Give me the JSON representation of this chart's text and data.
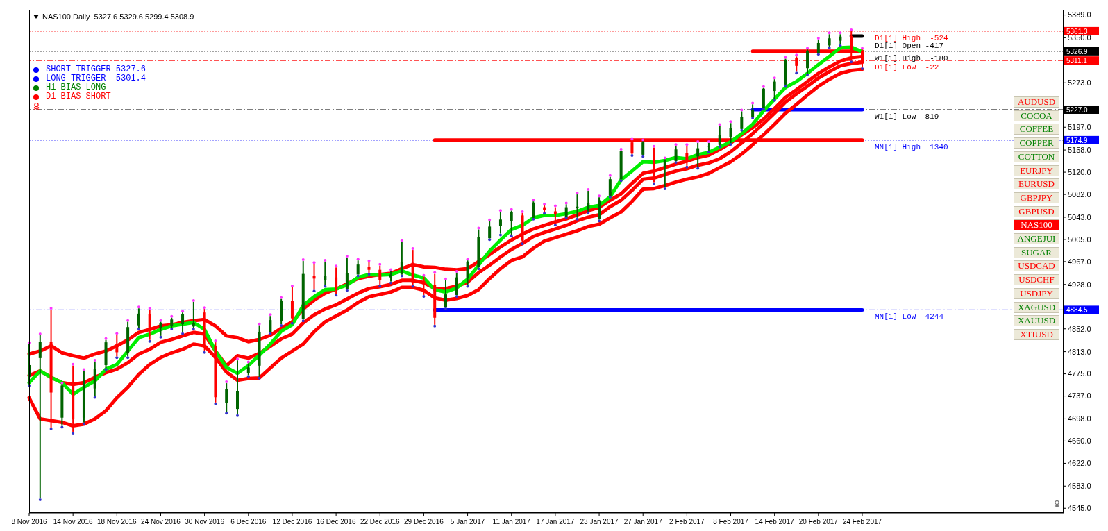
{
  "chart_data": {
    "type": "candlestick",
    "title": "NAS100,Daily  5327.6 5329.6 5299.4 5308.9",
    "categories": [
      "8 Nov 2016",
      null,
      null,
      null,
      "14 Nov 2016",
      null,
      null,
      null,
      "18 Nov 2016",
      null,
      null,
      null,
      "24 Nov 2016",
      null,
      null,
      null,
      "30 Nov 2016",
      null,
      null,
      null,
      "6 Dec 2016",
      null,
      null,
      null,
      "12 Dec 2016",
      null,
      null,
      null,
      "16 Dec 2016",
      null,
      null,
      null,
      "22 Dec 2016",
      null,
      null,
      null,
      "29 Dec 2016",
      null,
      null,
      null,
      "5 Jan 2017",
      null,
      null,
      null,
      "11 Jan 2017",
      null,
      null,
      null,
      "17 Jan 2017",
      null,
      null,
      null,
      "23 Jan 2017",
      null,
      null,
      null,
      "27 Jan 2017",
      null,
      null,
      null,
      "2 Feb 2017",
      null,
      null,
      null,
      "8 Feb 2017",
      null,
      null,
      null,
      "14 Feb 2017",
      null,
      null,
      null,
      "20 Feb 2017",
      null,
      null,
      null,
      "24 Feb 2017"
    ],
    "ohlc": [
      [
        4770,
        4826,
        4757,
        4790
      ],
      [
        4802,
        4841,
        4562,
        4830
      ],
      [
        4830,
        4885,
        4683,
        4743
      ],
      [
        4700,
        4757,
        4686,
        4755
      ],
      [
        4760,
        4789,
        4676,
        4698
      ],
      [
        4700,
        4780,
        4692,
        4765
      ],
      [
        4750,
        4796,
        4737,
        4783
      ],
      [
        4790,
        4833,
        4785,
        4829
      ],
      [
        4826,
        4842,
        4805,
        4812
      ],
      [
        4810,
        4864,
        4805,
        4855
      ],
      [
        4858,
        4887,
        4854,
        4878
      ],
      [
        4877,
        4885,
        4833,
        4852
      ],
      [
        4854,
        4864,
        4840,
        4862
      ],
      [
        4857,
        4871,
        4854,
        4868
      ],
      [
        4860,
        4880,
        4846,
        4877
      ],
      [
        4856,
        4898,
        4854,
        4862
      ],
      [
        4880,
        4886,
        4814,
        4820
      ],
      [
        4822,
        4829,
        4726,
        4735
      ],
      [
        4725,
        4759,
        4710,
        4749
      ],
      [
        4715,
        4798,
        4706,
        4745
      ],
      [
        4776,
        4793,
        4773,
        4786
      ],
      [
        4789,
        4858,
        4770,
        4847
      ],
      [
        4846,
        4874,
        4846,
        4867
      ],
      [
        4866,
        4903,
        4860,
        4900
      ],
      [
        4900,
        4923,
        4864,
        4870
      ],
      [
        4869,
        4968,
        4868,
        4946
      ],
      [
        4942,
        4963,
        4919,
        4938
      ],
      [
        4935,
        4967,
        4927,
        4943
      ],
      [
        4940,
        4957,
        4912,
        4920
      ],
      [
        4920,
        4974,
        4920,
        4947
      ],
      [
        4945,
        4969,
        4945,
        4962
      ],
      [
        4958,
        4966,
        4948,
        4953
      ],
      [
        4953,
        4960,
        4927,
        4935
      ],
      [
        4940,
        4951,
        4933,
        4945
      ],
      [
        4945,
        5001,
        4945,
        4966
      ],
      [
        4965,
        4987,
        4927,
        4931
      ],
      [
        4934,
        4941,
        4910,
        4928
      ],
      [
        4927,
        4946,
        4859,
        4871
      ],
      [
        4889,
        4935,
        4889,
        4911
      ],
      [
        4910,
        4948,
        4910,
        4940
      ],
      [
        4939,
        4969,
        4927,
        4967
      ],
      [
        4958,
        5022,
        4957,
        5009
      ],
      [
        5007,
        5036,
        5007,
        5027
      ],
      [
        5028,
        5052,
        5015,
        5039
      ],
      [
        5036,
        5054,
        5013,
        5052
      ],
      [
        5046,
        5050,
        5000,
        5003
      ],
      [
        5042,
        5070,
        5042,
        5068
      ],
      [
        5060,
        5063,
        5052,
        5055
      ],
      [
        5053,
        5060,
        5032,
        5048
      ],
      [
        5044,
        5065,
        5044,
        5060
      ],
      [
        5059,
        5082,
        5042,
        5061
      ],
      [
        5053,
        5088,
        5053,
        5067
      ],
      [
        5040,
        5077,
        5039,
        5072
      ],
      [
        5080,
        5112,
        5080,
        5108
      ],
      [
        5108,
        5157,
        5108,
        5156
      ],
      [
        5171,
        5174,
        5151,
        5152
      ],
      [
        5150,
        5173,
        5149,
        5171
      ],
      [
        5149,
        5162,
        5103,
        5133
      ],
      [
        5128,
        5142,
        5094,
        5140
      ],
      [
        5139,
        5165,
        5139,
        5159
      ],
      [
        5153,
        5165,
        5131,
        5140
      ],
      [
        5147,
        5170,
        5129,
        5161
      ],
      [
        5164,
        5170,
        5157,
        5165
      ],
      [
        5167,
        5199,
        5166,
        5183
      ],
      [
        5180,
        5204,
        5170,
        5196
      ],
      [
        5194,
        5224,
        5194,
        5215
      ],
      [
        5215,
        5236,
        5215,
        5227
      ],
      [
        5230,
        5264,
        5230,
        5263
      ],
      [
        5259,
        5279,
        5245,
        5275
      ],
      [
        5270,
        5314,
        5269,
        5312
      ],
      [
        5316,
        5318,
        5292,
        5302
      ],
      [
        5298,
        5330,
        5289,
        5327
      ],
      [
        5324,
        5347,
        5324,
        5341
      ],
      [
        5337,
        5356,
        5335,
        5349
      ],
      [
        5345,
        5356,
        5339,
        5352
      ],
      [
        5353,
        5361.3,
        5311.1,
        5327
      ],
      [
        5327.6,
        5329.6,
        5299.4,
        5308.9
      ]
    ],
    "series": [
      {
        "type": "line",
        "color": "#00ee00",
        "values": [
          4760,
          4780,
          4769,
          4760,
          4740,
          4752,
          4763,
          4783,
          4791,
          4814,
          4837,
          4843,
          4851,
          4857,
          4860,
          4863,
          4851,
          4814,
          4786,
          4776,
          4789,
          4807,
          4826,
          4848,
          4859,
          4892,
          4907,
          4919,
          4920,
          4927,
          4940,
          4945,
          4944,
          4945,
          4951,
          4944,
          4939,
          4919,
          4915,
          4922,
          4937,
          4961,
          4985,
          5004,
          5022,
          5029,
          5042,
          5046,
          5046,
          5049,
          5053,
          5060,
          5063,
          5078,
          5107,
          5122,
          5138,
          5137,
          5140,
          5145,
          5143,
          5150,
          5154,
          5163,
          5172,
          5186,
          5202,
          5225,
          5245,
          5265,
          5275,
          5289,
          5304,
          5318,
          5333,
          5334,
          5326
        ]
      },
      {
        "type": "line",
        "color": "#ff0000",
        "values": [
          4809,
          4814,
          4823,
          4811,
          4806,
          4802,
          4809,
          4814,
          4823,
          4833,
          4846,
          4851,
          4857,
          4859,
          4863,
          4866,
          4868,
          4857,
          4840,
          4837,
          4830,
          4834,
          4841,
          4853,
          4864,
          4886,
          4901,
          4913,
          4920,
          4929,
          4938,
          4942,
          4945,
          4947,
          4955,
          4962,
          4958,
          4957,
          4954,
          4953,
          4955,
          4967,
          4979,
          4992,
          5004,
          5014,
          5023,
          5029,
          5035,
          5040,
          5047,
          5054,
          5060,
          5072,
          5083,
          5101,
          5118,
          5122,
          5128,
          5134,
          5139,
          5145,
          5149,
          5159,
          5170,
          5184,
          5196,
          5211,
          5229,
          5248,
          5261,
          5275,
          5289,
          5300,
          5310,
          5316,
          5318
        ]
      },
      {
        "type": "line",
        "color": "#ff0000",
        "values": [
          4772,
          4780,
          4769,
          4760,
          4757,
          4760,
          4769,
          4777,
          4783,
          4794,
          4809,
          4817,
          4829,
          4834,
          4840,
          4846,
          4843,
          4814,
          4789,
          4806,
          4802,
          4810,
          4822,
          4835,
          4843,
          4862,
          4876,
          4886,
          4893,
          4903,
          4913,
          4921,
          4924,
          4928,
          4935,
          4935,
          4931,
          4921,
          4921,
          4925,
          4932,
          4948,
          4961,
          4975,
          4988,
          4998,
          5010,
          5017,
          5023,
          5029,
          5037,
          5043,
          5047,
          5061,
          5072,
          5089,
          5108,
          5110,
          5116,
          5122,
          5126,
          5132,
          5136,
          5143,
          5155,
          5170,
          5186,
          5203,
          5221,
          5240,
          5254,
          5267,
          5281,
          5292,
          5302,
          5306,
          5308
        ]
      },
      {
        "type": "line",
        "color": "#ff0000",
        "values": [
          4734,
          4698,
          4695,
          4692,
          4686,
          4689,
          4698,
          4712,
          4734,
          4752,
          4774,
          4791,
          4803,
          4811,
          4817,
          4826,
          4823,
          4803,
          4778,
          4764,
          4767,
          4768,
          4785,
          4802,
          4814,
          4826,
          4847,
          4864,
          4874,
          4884,
          4897,
          4907,
          4911,
          4915,
          4923,
          4923,
          4918,
          4905,
          4901,
          4904,
          4909,
          4919,
          4938,
          4955,
          4969,
          4975,
          4990,
          5002,
          5008,
          5014,
          5020,
          5027,
          5031,
          5042,
          5052,
          5070,
          5091,
          5092,
          5097,
          5103,
          5108,
          5112,
          5118,
          5128,
          5138,
          5151,
          5167,
          5184,
          5202,
          5221,
          5236,
          5252,
          5267,
          5279,
          5289,
          5294,
          5296
        ]
      },
      {
        "type": "line",
        "color": "#ff0000",
        "values": [
          null,
          null,
          null,
          null,
          null,
          null,
          null,
          null,
          null,
          null,
          null,
          null,
          null,
          null,
          null,
          null,
          null,
          null,
          null,
          null,
          null,
          null,
          null,
          null,
          null,
          null,
          null,
          null,
          null,
          null,
          null,
          null,
          null,
          null,
          null,
          null,
          null,
          null,
          null,
          null,
          null,
          null,
          null,
          null,
          null,
          null,
          null,
          null,
          null,
          null,
          null,
          null,
          null,
          null,
          null,
          null,
          null,
          null,
          null,
          null,
          null,
          null,
          null,
          null,
          null,
          null,
          5326.9,
          5326.9,
          5326.9,
          5326.9,
          5326.9,
          5326.9,
          5326.9,
          5326.9,
          5326.9,
          5326.9,
          5326.9
        ]
      },
      {
        "type": "line",
        "color": "#0000ff",
        "values": [
          null,
          null,
          null,
          null,
          null,
          null,
          null,
          null,
          null,
          null,
          null,
          null,
          null,
          null,
          null,
          null,
          null,
          null,
          null,
          null,
          null,
          null,
          null,
          null,
          null,
          null,
          null,
          null,
          null,
          null,
          null,
          null,
          null,
          null,
          null,
          null,
          null,
          null,
          null,
          null,
          null,
          null,
          null,
          null,
          null,
          null,
          null,
          null,
          null,
          null,
          null,
          null,
          null,
          null,
          null,
          null,
          null,
          null,
          null,
          null,
          null,
          null,
          null,
          null,
          null,
          null,
          5227.0,
          5227.0,
          5227.0,
          5227.0,
          5227.0,
          5227.0,
          5227.0,
          5227.0,
          5227.0,
          5227.0,
          5227.0
        ]
      },
      {
        "type": "line",
        "color": "#ff0000",
        "values": [
          null,
          null,
          null,
          null,
          null,
          null,
          null,
          null,
          null,
          null,
          null,
          null,
          null,
          null,
          null,
          null,
          null,
          null,
          null,
          null,
          null,
          null,
          null,
          null,
          null,
          null,
          null,
          null,
          null,
          null,
          null,
          null,
          null,
          null,
          null,
          null,
          null,
          5174.9,
          5174.9,
          5174.9,
          5174.9,
          5174.9,
          5174.9,
          5174.9,
          5174.9,
          5174.9,
          5174.9,
          5174.9,
          5174.9,
          5174.9,
          5174.9,
          5174.9,
          5174.9,
          5174.9,
          5174.9,
          5174.9,
          5174.9,
          5174.9,
          5174.9,
          5174.9,
          5174.9,
          5174.9,
          5174.9,
          5174.9,
          5174.9,
          5174.9,
          5174.9,
          5174.9,
          5174.9,
          5174.9,
          5174.9,
          5174.9,
          5174.9,
          5174.9,
          5174.9,
          5174.9,
          5174.9
        ]
      },
      {
        "type": "line",
        "color": "#0000ff",
        "values": [
          null,
          null,
          null,
          null,
          null,
          null,
          null,
          null,
          null,
          null,
          null,
          null,
          null,
          null,
          null,
          null,
          null,
          null,
          null,
          null,
          null,
          null,
          null,
          null,
          null,
          null,
          null,
          null,
          null,
          null,
          null,
          null,
          null,
          null,
          null,
          null,
          null,
          4884.5,
          4884.5,
          4884.5,
          4884.5,
          4884.5,
          4884.5,
          4884.5,
          4884.5,
          4884.5,
          4884.5,
          4884.5,
          4884.5,
          4884.5,
          4884.5,
          4884.5,
          4884.5,
          4884.5,
          4884.5,
          4884.5,
          4884.5,
          4884.5,
          4884.5,
          4884.5,
          4884.5,
          4884.5,
          4884.5,
          4884.5,
          4884.5,
          4884.5,
          4884.5,
          4884.5,
          4884.5,
          4884.5,
          4884.5,
          4884.5,
          4884.5,
          4884.5,
          4884.5,
          4884.5,
          4884.5
        ]
      },
      {
        "type": "line",
        "color": "#000000",
        "values": [
          null,
          null,
          null,
          null,
          null,
          null,
          null,
          null,
          null,
          null,
          null,
          null,
          null,
          null,
          null,
          null,
          null,
          null,
          null,
          null,
          null,
          null,
          null,
          null,
          null,
          null,
          null,
          null,
          null,
          null,
          null,
          null,
          null,
          null,
          null,
          null,
          null,
          null,
          null,
          null,
          null,
          null,
          null,
          null,
          null,
          null,
          null,
          null,
          null,
          null,
          null,
          null,
          null,
          null,
          null,
          null,
          null,
          null,
          null,
          null,
          null,
          null,
          null,
          null,
          null,
          null,
          null,
          null,
          null,
          null,
          null,
          null,
          null,
          null,
          null,
          5353,
          5353
        ]
      }
    ],
    "ylim": [
      4537,
      5398
    ],
    "yticks": [
      {
        "value": 5389,
        "label": "5389.0"
      },
      {
        "value": 5350,
        "label": "5350.0"
      },
      {
        "value": 5273,
        "label": "5273.0"
      },
      {
        "value": 5197,
        "label": "5197.0"
      },
      {
        "value": 5158,
        "label": "5158.0"
      },
      {
        "value": 5120,
        "label": "5120.0"
      },
      {
        "value": 5082,
        "label": "5082.0"
      },
      {
        "value": 5043,
        "label": "5043.0"
      },
      {
        "value": 5005,
        "label": "5005.0"
      },
      {
        "value": 4967,
        "label": "4967.0"
      },
      {
        "value": 4928,
        "label": "4928.0"
      },
      {
        "value": 4852,
        "label": "4852.0"
      },
      {
        "value": 4813,
        "label": "4813.0"
      },
      {
        "value": 4775,
        "label": "4775.0"
      },
      {
        "value": 4737,
        "label": "4737.0"
      },
      {
        "value": 4698,
        "label": "4698.0"
      },
      {
        "value": 4660,
        "label": "4660.0"
      },
      {
        "value": 4622,
        "label": "4622.0"
      },
      {
        "value": 4583,
        "label": "4583.0"
      },
      {
        "value": 4545,
        "label": "4545.0"
      }
    ],
    "ref_lines": [
      {
        "axis": "y",
        "value": 5361.3,
        "label": "5361.3",
        "color": "#ff0000",
        "line_style": "dotted"
      },
      {
        "axis": "y",
        "value": 5326.9,
        "label": "5326.9",
        "color": "#000000",
        "line_style": "dotted"
      },
      {
        "axis": "y",
        "value": 5311.1,
        "label": "5311.1",
        "color": "#ff0000",
        "line_style": "dashed"
      },
      {
        "axis": "y",
        "value": 5227.0,
        "label": "5227.0",
        "color": "#000000",
        "line_style": "dashed"
      },
      {
        "axis": "y",
        "value": 5174.9,
        "label": "5174.9",
        "color": "#0000ff",
        "line_style": "dotted"
      },
      {
        "axis": "y",
        "value": 4884.5,
        "label": "4884.5",
        "color": "#0000ff",
        "line_style": "dashed"
      }
    ],
    "annotations": [
      "SHORT TRIGGER 5327.6",
      "LONG TRIGGER  5301.4",
      "H1 BIAS LONG",
      "D1 BIAS SHORT",
      "AUDUSD",
      "COCOA",
      "COFFEE",
      "COPPER",
      "COTTON",
      "EURJPY",
      "EURUSD",
      "GBPJPY",
      "GBPUSD",
      "NAS100",
      "ANGEJUI",
      "SUGAR",
      "USDCAD",
      "USDCHF",
      "USDJPY",
      "XAGUSD",
      "XAUUSD",
      "XTIUSD",
      "D1[1] Open -417",
      {
        "text": "D1[1] High  -524",
        "y": 5361.3
      },
      {
        "text": "W1[1] High  -180",
        "y": 5326.9
      },
      {
        "text": "D1[1] Low  -22",
        "y": 5311.1
      },
      {
        "text": "W1[1] Low  819",
        "y": 5227.0
      },
      {
        "text": "MN[1] High  1340",
        "y": 5174.9
      },
      {
        "text": "MN[1] Low  4244",
        "y": 4884.5
      }
    ]
  }
}
